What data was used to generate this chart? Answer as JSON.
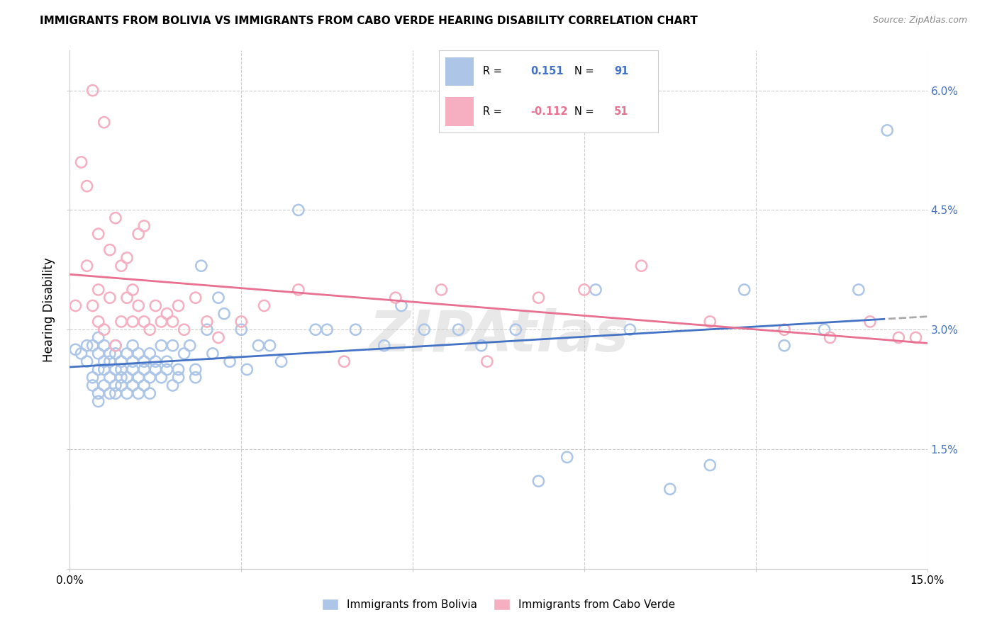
{
  "title": "IMMIGRANTS FROM BOLIVIA VS IMMIGRANTS FROM CABO VERDE HEARING DISABILITY CORRELATION CHART",
  "source": "Source: ZipAtlas.com",
  "ylabel": "Hearing Disability",
  "xlim": [
    0.0,
    0.15
  ],
  "ylim": [
    0.0,
    0.065
  ],
  "xticks": [
    0.0,
    0.03,
    0.06,
    0.09,
    0.12,
    0.15
  ],
  "yticks": [
    0.0,
    0.015,
    0.03,
    0.045,
    0.06
  ],
  "bolivia_color": "#adc6e8",
  "cabo_verde_color": "#f5afc0",
  "bolivia_line_color": "#4472c4",
  "cabo_verde_line_color": "#e87090",
  "dashed_color": "#aaaaaa",
  "R_bolivia": 0.151,
  "N_bolivia": 91,
  "R_cabo_verde": -0.112,
  "N_cabo_verde": 51,
  "bolivia_x": [
    0.001,
    0.002,
    0.003,
    0.003,
    0.004,
    0.004,
    0.004,
    0.005,
    0.005,
    0.005,
    0.005,
    0.005,
    0.006,
    0.006,
    0.006,
    0.006,
    0.007,
    0.007,
    0.007,
    0.007,
    0.008,
    0.008,
    0.008,
    0.008,
    0.008,
    0.009,
    0.009,
    0.009,
    0.009,
    0.01,
    0.01,
    0.01,
    0.011,
    0.011,
    0.011,
    0.011,
    0.012,
    0.012,
    0.012,
    0.013,
    0.013,
    0.013,
    0.014,
    0.014,
    0.014,
    0.015,
    0.015,
    0.016,
    0.016,
    0.017,
    0.017,
    0.018,
    0.018,
    0.019,
    0.019,
    0.02,
    0.021,
    0.022,
    0.022,
    0.023,
    0.024,
    0.025,
    0.026,
    0.027,
    0.028,
    0.03,
    0.031,
    0.033,
    0.035,
    0.037,
    0.04,
    0.043,
    0.045,
    0.05,
    0.055,
    0.058,
    0.062,
    0.068,
    0.072,
    0.078,
    0.082,
    0.087,
    0.092,
    0.098,
    0.105,
    0.112,
    0.118,
    0.125,
    0.132,
    0.138,
    0.143
  ],
  "bolivia_y": [
    0.0275,
    0.027,
    0.028,
    0.026,
    0.024,
    0.028,
    0.023,
    0.025,
    0.022,
    0.027,
    0.029,
    0.021,
    0.026,
    0.023,
    0.028,
    0.025,
    0.024,
    0.027,
    0.022,
    0.026,
    0.025,
    0.023,
    0.027,
    0.022,
    0.028,
    0.024,
    0.026,
    0.023,
    0.025,
    0.022,
    0.027,
    0.024,
    0.025,
    0.026,
    0.023,
    0.028,
    0.024,
    0.027,
    0.022,
    0.026,
    0.025,
    0.023,
    0.027,
    0.024,
    0.022,
    0.026,
    0.025,
    0.024,
    0.028,
    0.025,
    0.026,
    0.023,
    0.028,
    0.024,
    0.025,
    0.027,
    0.028,
    0.025,
    0.024,
    0.038,
    0.03,
    0.027,
    0.034,
    0.032,
    0.026,
    0.03,
    0.025,
    0.028,
    0.028,
    0.026,
    0.045,
    0.03,
    0.03,
    0.03,
    0.028,
    0.033,
    0.03,
    0.03,
    0.028,
    0.03,
    0.011,
    0.014,
    0.035,
    0.03,
    0.01,
    0.013,
    0.035,
    0.028,
    0.03,
    0.035,
    0.055
  ],
  "cabo_verde_x": [
    0.001,
    0.002,
    0.003,
    0.003,
    0.004,
    0.004,
    0.005,
    0.005,
    0.005,
    0.006,
    0.006,
    0.007,
    0.007,
    0.008,
    0.008,
    0.009,
    0.009,
    0.01,
    0.01,
    0.011,
    0.011,
    0.012,
    0.012,
    0.013,
    0.013,
    0.014,
    0.015,
    0.016,
    0.017,
    0.018,
    0.019,
    0.02,
    0.022,
    0.024,
    0.026,
    0.03,
    0.034,
    0.04,
    0.048,
    0.057,
    0.065,
    0.073,
    0.082,
    0.09,
    0.1,
    0.112,
    0.125,
    0.133,
    0.14,
    0.145,
    0.148
  ],
  "cabo_verde_y": [
    0.033,
    0.051,
    0.048,
    0.038,
    0.06,
    0.033,
    0.031,
    0.035,
    0.042,
    0.056,
    0.03,
    0.034,
    0.04,
    0.028,
    0.044,
    0.031,
    0.038,
    0.034,
    0.039,
    0.031,
    0.035,
    0.042,
    0.033,
    0.043,
    0.031,
    0.03,
    0.033,
    0.031,
    0.032,
    0.031,
    0.033,
    0.03,
    0.034,
    0.031,
    0.029,
    0.031,
    0.033,
    0.035,
    0.026,
    0.034,
    0.035,
    0.026,
    0.034,
    0.035,
    0.038,
    0.031,
    0.03,
    0.029,
    0.031,
    0.029,
    0.029
  ]
}
